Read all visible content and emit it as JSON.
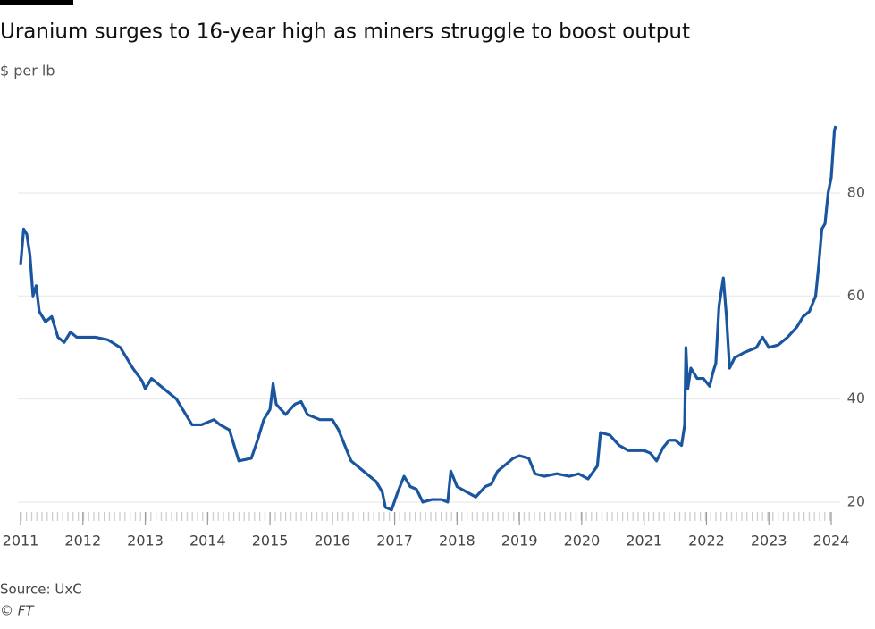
{
  "chart_data": {
    "type": "line",
    "title": "Uranium surges to 16-year high as miners struggle to boost output",
    "subtitle": "$ per lb",
    "source": "Source: UxC",
    "credit": "© FT",
    "grid": true,
    "xlim": [
      2011,
      2024.2
    ],
    "xticks": [
      2011,
      2012,
      2013,
      2014,
      2015,
      2016,
      2017,
      2018,
      2019,
      2020,
      2021,
      2022,
      2023,
      2024
    ],
    "ylim": [
      18.5,
      95
    ],
    "yticks": [
      20,
      40,
      60,
      80
    ],
    "series": [
      {
        "color": "#1a56a0",
        "x": [
          2011.0,
          2011.05,
          2011.1,
          2011.15,
          2011.2,
          2011.25,
          2011.3,
          2011.4,
          2011.5,
          2011.6,
          2011.7,
          2011.8,
          2011.9,
          2012.0,
          2012.2,
          2012.4,
          2012.6,
          2012.8,
          2012.95,
          2013.0,
          2013.1,
          2013.3,
          2013.5,
          2013.6,
          2013.75,
          2013.9,
          2014.0,
          2014.1,
          2014.2,
          2014.35,
          2014.45,
          2014.5,
          2014.7,
          2014.8,
          2014.9,
          2015.0,
          2015.05,
          2015.1,
          2015.25,
          2015.4,
          2015.5,
          2015.6,
          2015.8,
          2016.0,
          2016.1,
          2016.2,
          2016.3,
          2016.4,
          2016.5,
          2016.6,
          2016.7,
          2016.8,
          2016.85,
          2016.95,
          2017.05,
          2017.15,
          2017.25,
          2017.35,
          2017.45,
          2017.6,
          2017.75,
          2017.85,
          2017.9,
          2018.0,
          2018.15,
          2018.3,
          2018.45,
          2018.55,
          2018.65,
          2018.8,
          2018.9,
          2019.0,
          2019.15,
          2019.25,
          2019.4,
          2019.6,
          2019.8,
          2019.95,
          2020.1,
          2020.25,
          2020.3,
          2020.45,
          2020.6,
          2020.75,
          2021.0,
          2021.1,
          2021.2,
          2021.3,
          2021.4,
          2021.5,
          2021.6,
          2021.65,
          2021.67,
          2021.7,
          2021.75,
          2021.85,
          2021.95,
          2022.05,
          2022.1,
          2022.15,
          2022.2,
          2022.27,
          2022.32,
          2022.37,
          2022.45,
          2022.6,
          2022.8,
          2022.9,
          2023.0,
          2023.15,
          2023.3,
          2023.45,
          2023.55,
          2023.65,
          2023.75,
          2023.8,
          2023.85,
          2023.9,
          2023.95,
          2024.0,
          2024.05,
          2024.07
        ],
        "values": [
          66,
          73,
          72,
          68,
          60,
          62,
          57,
          55,
          56,
          52,
          51,
          53,
          52,
          52,
          52,
          51.5,
          50,
          46,
          43.5,
          42,
          44,
          42,
          40,
          38,
          35,
          35,
          35.5,
          36,
          35,
          34,
          30,
          28,
          28.5,
          32,
          36,
          38,
          43,
          39,
          37,
          39,
          39.5,
          37,
          36,
          36,
          34,
          31,
          28,
          27,
          26,
          25,
          24,
          22,
          19,
          18.5,
          22,
          25,
          23,
          22.5,
          20,
          20.5,
          20.5,
          20,
          26,
          23,
          22,
          21,
          23,
          23.5,
          26,
          27.5,
          28.5,
          29,
          28.5,
          25.5,
          25,
          25.5,
          25,
          25.5,
          24.5,
          27,
          33.5,
          33,
          31,
          30,
          30,
          29.5,
          28,
          30.5,
          32,
          32,
          31,
          35,
          50,
          42,
          46,
          44,
          44,
          42.5,
          45,
          47,
          58,
          63.5,
          56,
          46,
          48,
          49,
          50,
          52,
          50,
          50.5,
          52,
          54,
          56,
          57,
          60,
          66,
          73,
          74,
          80,
          83,
          92,
          93
        ]
      }
    ]
  }
}
